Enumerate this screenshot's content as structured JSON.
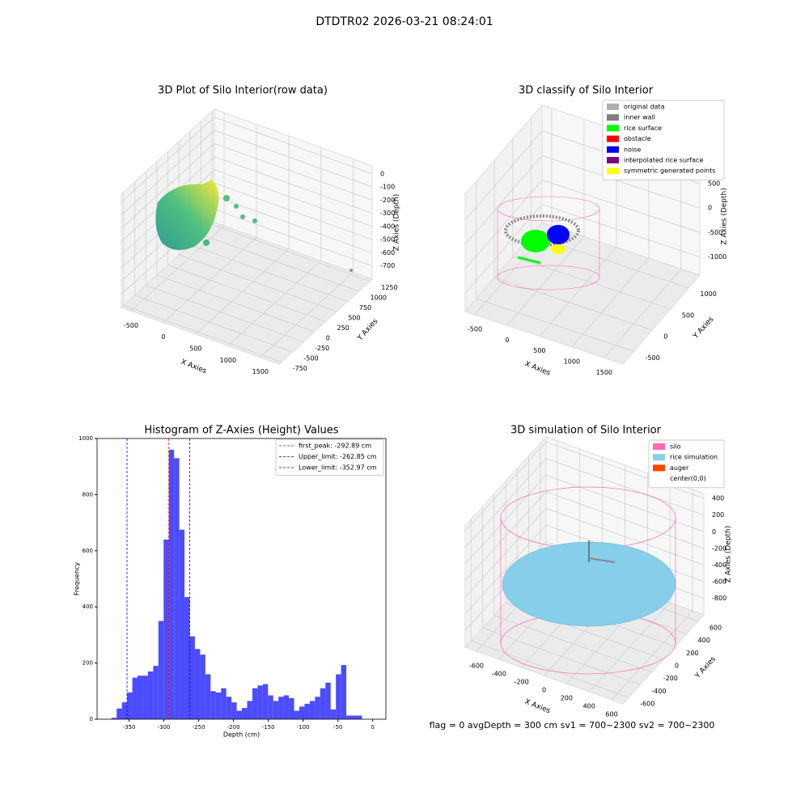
{
  "figure_title": "DTDTR02 2026-03-21 08:24:01",
  "annotation": "flag = 0     avgDepth = 300 cm  sv1 = 700~2300  sv2 = 700~2300",
  "chart_data": [
    {
      "type": "scatter3d",
      "title": "3D Plot of Silo Interior(row data)",
      "xlabel": "X Axies",
      "ylabel": "Y Axies",
      "zlabel": "Z Axies (Depth)",
      "xlim": [
        -650,
        1790
      ],
      "ylim": [
        -800,
        1300
      ],
      "zlim": [
        -800,
        60
      ],
      "xticks": [
        -500,
        0,
        500,
        1000,
        1500
      ],
      "yticks": [
        -750,
        -500,
        -250,
        0,
        250,
        500,
        750,
        1000,
        1250
      ],
      "zticks": [
        0,
        -100,
        -200,
        -300,
        -400,
        -500,
        -600,
        -700
      ],
      "grid": true
    },
    {
      "type": "scatter3d",
      "title": "3D classify of Silo Interior",
      "xlabel": "X Axies",
      "ylabel": "Y Axies",
      "zlabel": "Z Axies (Depth)",
      "xlim": [
        -650,
        1790
      ],
      "ylim": [
        -800,
        1300
      ],
      "zlim": [
        -1370,
        1030
      ],
      "xticks": [
        -500,
        0,
        500,
        1000,
        1500
      ],
      "yticks": [
        -500,
        0,
        500,
        1000
      ],
      "zticks": [
        500,
        0,
        -500,
        -1000
      ],
      "grid": true,
      "legend": [
        {
          "name": "original data",
          "color": "#b0b0b0"
        },
        {
          "name": "inner wall",
          "color": "#808080"
        },
        {
          "name": "rice surface",
          "color": "#00ff00"
        },
        {
          "name": "obstacle",
          "color": "#ff0000"
        },
        {
          "name": "noise",
          "color": "#0000ff"
        },
        {
          "name": "interpolated rice surface",
          "color": "#800080"
        },
        {
          "name": "symmetric generated points",
          "color": "#ffff00"
        }
      ]
    },
    {
      "type": "histogram",
      "title": "Histogram of Z-Axies (Height) Values",
      "xlabel": "Depth (cm)",
      "ylabel": "Frequency",
      "color": "#4c4cff",
      "bins": [
        -375.39,
        -367.89,
        -360.39,
        -352.89,
        -345.39,
        -337.89,
        -330.39,
        -322.89,
        -315.39,
        -307.89,
        -300.39,
        -292.89,
        -285.39,
        -277.89,
        -270.39,
        -262.89,
        -255.39,
        -247.89,
        -240.39,
        -232.89,
        -225.39,
        -217.89,
        -210.39,
        -202.89,
        -195.39,
        -187.89,
        -180.39,
        -172.89,
        -165.39,
        -157.89,
        -150.39,
        -142.89,
        -135.39,
        -127.89,
        -120.39,
        -112.89,
        -105.39,
        -97.89,
        -90.39,
        -82.89,
        -75.39,
        -67.89,
        -60.39,
        -52.89,
        -45.39,
        -37.89,
        -30.39,
        -22.89,
        -15.39,
        -7.89,
        -0.39
      ],
      "counts": [
        5,
        38,
        60,
        95,
        148,
        155,
        155,
        170,
        190,
        350,
        640,
        960,
        930,
        675,
        435,
        295,
        250,
        230,
        160,
        100,
        95,
        110,
        80,
        60,
        30,
        40,
        65,
        110,
        120,
        125,
        85,
        65,
        80,
        85,
        75,
        30,
        45,
        55,
        65,
        80,
        110,
        130,
        35,
        160,
        193,
        13,
        13,
        13,
        0,
        0
      ],
      "xlim": [
        -396,
        19
      ],
      "ylim": [
        0,
        1000
      ],
      "xticks": [
        -350,
        -300,
        -250,
        -200,
        -150,
        -100,
        -50,
        0
      ],
      "yticks": [
        0,
        200,
        400,
        600,
        800,
        1000
      ],
      "lines": [
        {
          "name": "first_peak: -292.89 cm",
          "value": -292.89,
          "color": "#ff0000"
        },
        {
          "name": "Upper_limit: -262.85 cm",
          "value": -262.85,
          "color": "#0000ff"
        },
        {
          "name": "Lower_limit: -352.97 cm",
          "value": -352.97,
          "color": "#0000ff"
        }
      ]
    },
    {
      "type": "scatter3d",
      "title": "3D simulation of Silo Interior",
      "xlabel": "X Axies",
      "ylabel": "Y Axies",
      "zlabel": "Z Axies (Depth)",
      "xlim": [
        -700,
        700
      ],
      "ylim": [
        -700,
        700
      ],
      "zlim": [
        -1000,
        460
      ],
      "xticks": [
        -600,
        -400,
        -200,
        0,
        200,
        400,
        600
      ],
      "yticks": [
        -600,
        -400,
        -200,
        0,
        200,
        400,
        600
      ],
      "zticks": [
        400,
        200,
        0,
        -200,
        -400,
        -600,
        -800
      ],
      "grid": true,
      "legend": [
        {
          "name": "silo",
          "color": "#ff69b4"
        },
        {
          "name": "rice simulation",
          "color": "#87ceeb"
        },
        {
          "name": "auger",
          "color": "#ff4500"
        },
        {
          "name": "center(0,0)",
          "color": "#ffffff"
        }
      ]
    }
  ]
}
